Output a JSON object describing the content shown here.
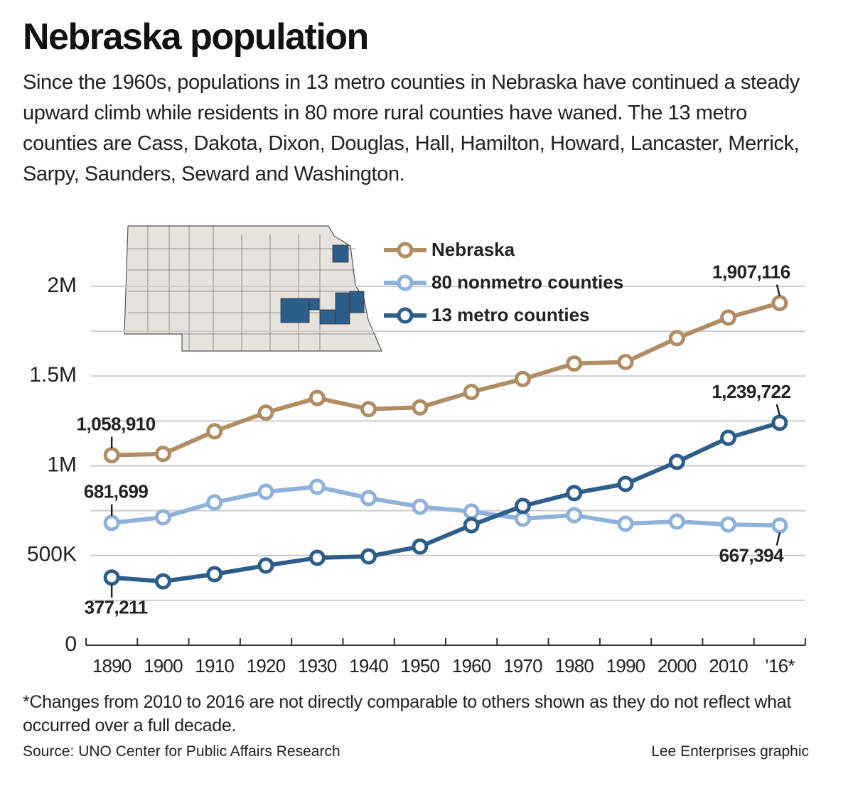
{
  "chart_data": {
    "type": "line",
    "title": "Nebraska population",
    "subtitle": "Since the 1960s, populations in 13 metro counties in Nebraska have continued a steady upward climb while residents in 80 more rural counties have waned. The 13 metro counties are Cass, Dakota, Dixon, Douglas, Hall, Hamilton, Howard, Lancaster, Merrick, Sarpy, Saunders, Seward and Washington.",
    "categories": [
      "1890",
      "1900",
      "1910",
      "1920",
      "1930",
      "1940",
      "1950",
      "1960",
      "1970",
      "1980",
      "1990",
      "2000",
      "2010",
      "’16*"
    ],
    "series": [
      {
        "name": "Nebraska",
        "color": "#b08d62",
        "values": [
          1058910,
          1066300,
          1192214,
          1296372,
          1377963,
          1315834,
          1325510,
          1411330,
          1483493,
          1569825,
          1578385,
          1711263,
          1826341,
          1907116
        ],
        "value_labels": [
          "1,058,910",
          null,
          null,
          null,
          null,
          null,
          null,
          null,
          null,
          null,
          null,
          null,
          null,
          "1,907,116"
        ]
      },
      {
        "name": "80 nonmetro counties",
        "color": "#8fb1da",
        "values": [
          681699,
          713000,
          796000,
          855000,
          883000,
          820000,
          772000,
          745000,
          705000,
          725000,
          677000,
          689000,
          673000,
          667394
        ],
        "value_labels": [
          "681,699",
          null,
          null,
          null,
          null,
          null,
          null,
          null,
          null,
          null,
          null,
          null,
          null,
          "667,394"
        ]
      },
      {
        "name": "13 metro counties",
        "color": "#2d5e8a",
        "values": [
          377211,
          356000,
          396000,
          444000,
          487000,
          495000,
          550000,
          669000,
          776000,
          848000,
          899000,
          1022000,
          1156000,
          1239722
        ],
        "value_labels": [
          "377,211",
          null,
          null,
          null,
          null,
          null,
          null,
          null,
          null,
          null,
          null,
          null,
          null,
          "1,239,722"
        ]
      }
    ],
    "ylim": [
      0,
      2000000
    ],
    "yticks": [
      0,
      {
        "value": 500000,
        "label": "500K"
      },
      {
        "value": 1000000,
        "label": "1M"
      },
      {
        "value": 1500000,
        "label": "1.5M"
      },
      {
        "value": 2000000,
        "label": "2M"
      }
    ],
    "minor_yticks": [
      250000,
      750000,
      1250000,
      1750000
    ],
    "grid": true,
    "footnote": "*Changes from 2010 to 2016 are not directly comparable to others shown as they do not reflect what occurred over a full decade.",
    "source": "Source: UNO Center for Public Affairs Research",
    "credit": "Lee Enterprises graphic"
  }
}
